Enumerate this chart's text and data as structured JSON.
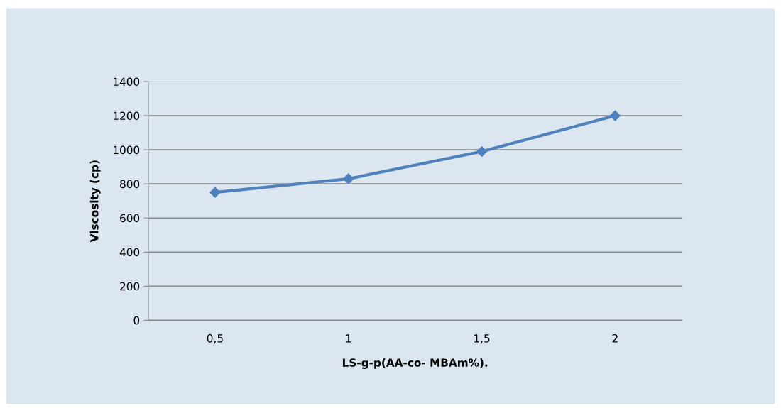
{
  "chart_data": {
    "type": "line",
    "xlabel": "LS-g-p(AA-co- MBAm%).",
    "ylabel": "Viscosity (cp)",
    "categories": [
      "0,5",
      "1",
      "1,5",
      "2"
    ],
    "series": [
      {
        "color": "#4f81bd",
        "values": [
          750,
          830,
          990,
          1200
        ]
      }
    ],
    "ylim": [
      0,
      1400
    ],
    "yticks": [
      0,
      200,
      400,
      600,
      800,
      1000,
      1200,
      1400
    ],
    "grid": "y",
    "marker": "diamond",
    "line_style": "solid",
    "legend": false
  }
}
